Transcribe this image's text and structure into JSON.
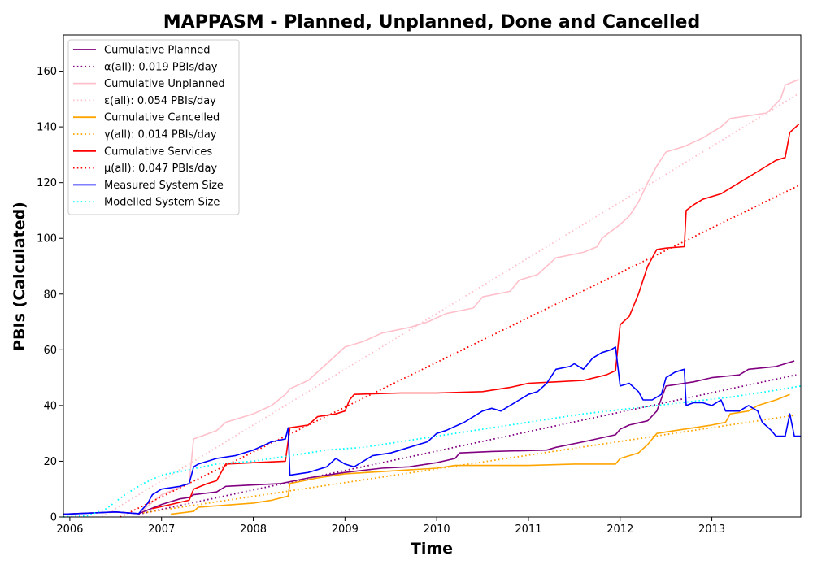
{
  "chart_data": {
    "type": "line",
    "title": "MAPPASM - Planned, Unplanned, Done  and Cancelled",
    "xlabel": "Time",
    "ylabel": "PBIs (Calculated)",
    "xlim": [
      2005.93,
      2013.97
    ],
    "ylim": [
      0,
      173
    ],
    "x_ticks": [
      2006,
      2007,
      2008,
      2009,
      2010,
      2011,
      2012,
      2013
    ],
    "y_ticks": [
      0,
      20,
      40,
      60,
      80,
      100,
      120,
      140,
      160
    ],
    "grid": false,
    "legend_position": "top-left",
    "series": [
      {
        "name": "Cumulative Planned",
        "color": "#800080",
        "style": "solid",
        "points": [
          [
            2005.93,
            1
          ],
          [
            2006.5,
            1.8
          ],
          [
            2006.75,
            1.2
          ],
          [
            2006.85,
            2.5
          ],
          [
            2007.0,
            4.5
          ],
          [
            2007.2,
            6.5
          ],
          [
            2007.3,
            7
          ],
          [
            2007.35,
            8
          ],
          [
            2007.6,
            9
          ],
          [
            2007.7,
            11
          ],
          [
            2008.0,
            11.5
          ],
          [
            2008.3,
            12
          ],
          [
            2008.6,
            14
          ],
          [
            2009.0,
            16
          ],
          [
            2009.4,
            17.5
          ],
          [
            2009.7,
            18
          ],
          [
            2010.0,
            19.5
          ],
          [
            2010.2,
            21
          ],
          [
            2010.25,
            23
          ],
          [
            2010.6,
            23.5
          ],
          [
            2011.2,
            24
          ],
          [
            2011.3,
            25
          ],
          [
            2011.6,
            27
          ],
          [
            2011.95,
            29.5
          ],
          [
            2012.0,
            31.5
          ],
          [
            2012.1,
            33
          ],
          [
            2012.3,
            34.5
          ],
          [
            2012.4,
            38
          ],
          [
            2012.5,
            47
          ],
          [
            2012.8,
            48.5
          ],
          [
            2013.0,
            50
          ],
          [
            2013.3,
            51
          ],
          [
            2013.4,
            53
          ],
          [
            2013.7,
            54
          ],
          [
            2013.9,
            56
          ]
        ]
      },
      {
        "name": "α(all): 0.019 PBIs/day",
        "color": "#800080",
        "style": "dotted",
        "points": [
          [
            2006.75,
            1
          ],
          [
            2013.92,
            51
          ]
        ]
      },
      {
        "name": "Cumulative Unplanned",
        "color": "#ffc0cb",
        "style": "solid",
        "points": [
          [
            2006.78,
            2
          ],
          [
            2007.0,
            8
          ],
          [
            2007.3,
            12
          ],
          [
            2007.35,
            28
          ],
          [
            2007.6,
            31
          ],
          [
            2007.7,
            34
          ],
          [
            2008.0,
            37
          ],
          [
            2008.2,
            40
          ],
          [
            2008.35,
            44
          ],
          [
            2008.4,
            46
          ],
          [
            2008.6,
            49
          ],
          [
            2008.8,
            55
          ],
          [
            2009.0,
            61
          ],
          [
            2009.2,
            63
          ],
          [
            2009.4,
            66
          ],
          [
            2009.7,
            68
          ],
          [
            2009.9,
            70
          ],
          [
            2010.1,
            73
          ],
          [
            2010.4,
            75
          ],
          [
            2010.5,
            79
          ],
          [
            2010.8,
            81
          ],
          [
            2010.9,
            85
          ],
          [
            2011.1,
            87
          ],
          [
            2011.2,
            90
          ],
          [
            2011.3,
            93
          ],
          [
            2011.6,
            95
          ],
          [
            2011.75,
            97
          ],
          [
            2011.8,
            100
          ],
          [
            2012.0,
            105
          ],
          [
            2012.1,
            108
          ],
          [
            2012.2,
            113
          ],
          [
            2012.3,
            120
          ],
          [
            2012.4,
            126
          ],
          [
            2012.5,
            131
          ],
          [
            2012.7,
            133
          ],
          [
            2012.9,
            136
          ],
          [
            2013.1,
            140
          ],
          [
            2013.2,
            143
          ],
          [
            2013.6,
            145
          ],
          [
            2013.75,
            150
          ],
          [
            2013.8,
            155
          ],
          [
            2013.95,
            157
          ]
        ]
      },
      {
        "name": "ε(all): 0.054 PBIs/day",
        "color": "#ffc0cb",
        "style": "dotted",
        "points": [
          [
            2006.35,
            0
          ],
          [
            2013.95,
            152
          ]
        ]
      },
      {
        "name": "Cumulative Cancelled",
        "color": "#ffa500",
        "style": "solid",
        "points": [
          [
            2007.1,
            1
          ],
          [
            2007.35,
            2
          ],
          [
            2007.4,
            3.5
          ],
          [
            2008.0,
            5
          ],
          [
            2008.2,
            6
          ],
          [
            2008.38,
            7.5
          ],
          [
            2008.4,
            12
          ],
          [
            2008.7,
            14
          ],
          [
            2009.0,
            15.5
          ],
          [
            2009.5,
            16.5
          ],
          [
            2010.0,
            17.5
          ],
          [
            2010.2,
            18.5
          ],
          [
            2011.0,
            18.5
          ],
          [
            2011.5,
            19
          ],
          [
            2011.95,
            19
          ],
          [
            2012.0,
            21
          ],
          [
            2012.1,
            22
          ],
          [
            2012.2,
            23
          ],
          [
            2012.3,
            26
          ],
          [
            2012.4,
            30
          ],
          [
            2012.6,
            31
          ],
          [
            2012.8,
            32
          ],
          [
            2013.0,
            33
          ],
          [
            2013.15,
            34
          ],
          [
            2013.2,
            37
          ],
          [
            2013.4,
            38
          ],
          [
            2013.5,
            40
          ],
          [
            2013.7,
            42
          ],
          [
            2013.85,
            44
          ]
        ]
      },
      {
        "name": "γ(all): 0.014 PBIs/day",
        "color": "#ffa500",
        "style": "dotted",
        "points": [
          [
            2006.8,
            1.5
          ],
          [
            2013.9,
            36.5
          ]
        ]
      },
      {
        "name": "Cumulative Services",
        "color": "#ff0000",
        "style": "solid",
        "points": [
          [
            2006.9,
            3
          ],
          [
            2007.1,
            4.5
          ],
          [
            2007.3,
            6
          ],
          [
            2007.35,
            10
          ],
          [
            2007.5,
            12
          ],
          [
            2007.6,
            13
          ],
          [
            2007.7,
            19
          ],
          [
            2008.0,
            19.5
          ],
          [
            2008.35,
            20
          ],
          [
            2008.4,
            32
          ],
          [
            2008.6,
            33
          ],
          [
            2008.7,
            36
          ],
          [
            2008.9,
            37
          ],
          [
            2009.0,
            38
          ],
          [
            2009.05,
            42
          ],
          [
            2009.1,
            44
          ],
          [
            2009.6,
            44.5
          ],
          [
            2010.0,
            44.5
          ],
          [
            2010.5,
            45
          ],
          [
            2010.8,
            46.5
          ],
          [
            2011.0,
            48
          ],
          [
            2011.3,
            48.5
          ],
          [
            2011.6,
            49
          ],
          [
            2011.85,
            51
          ],
          [
            2011.95,
            52.5
          ],
          [
            2012.0,
            69
          ],
          [
            2012.1,
            72
          ],
          [
            2012.2,
            80
          ],
          [
            2012.3,
            90
          ],
          [
            2012.4,
            96
          ],
          [
            2012.5,
            96.5
          ],
          [
            2012.7,
            97
          ],
          [
            2012.72,
            110
          ],
          [
            2012.8,
            112
          ],
          [
            2012.9,
            114
          ],
          [
            2013.1,
            116
          ],
          [
            2013.3,
            120
          ],
          [
            2013.5,
            124
          ],
          [
            2013.7,
            128
          ],
          [
            2013.8,
            129
          ],
          [
            2013.85,
            138
          ],
          [
            2013.95,
            141
          ]
        ]
      },
      {
        "name": "μ(all): 0.047 PBIs/day",
        "color": "#ff0000",
        "style": "dotted",
        "points": [
          [
            2006.55,
            0
          ],
          [
            2013.95,
            119
          ]
        ]
      },
      {
        "name": "Measured System Size",
        "color": "#0000ff",
        "style": "solid",
        "points": [
          [
            2005.93,
            1
          ],
          [
            2006.5,
            1.8
          ],
          [
            2006.75,
            1.2
          ],
          [
            2006.85,
            5
          ],
          [
            2006.9,
            8
          ],
          [
            2007.0,
            10
          ],
          [
            2007.2,
            11
          ],
          [
            2007.3,
            12
          ],
          [
            2007.35,
            18
          ],
          [
            2007.4,
            19
          ],
          [
            2007.6,
            21
          ],
          [
            2007.8,
            22
          ],
          [
            2008.0,
            24
          ],
          [
            2008.2,
            27
          ],
          [
            2008.35,
            28
          ],
          [
            2008.38,
            32
          ],
          [
            2008.4,
            15
          ],
          [
            2008.6,
            16
          ],
          [
            2008.8,
            18
          ],
          [
            2008.9,
            21
          ],
          [
            2009.0,
            19
          ],
          [
            2009.1,
            18
          ],
          [
            2009.3,
            22
          ],
          [
            2009.5,
            23
          ],
          [
            2009.7,
            25
          ],
          [
            2009.9,
            27
          ],
          [
            2010.0,
            30
          ],
          [
            2010.1,
            31
          ],
          [
            2010.3,
            34
          ],
          [
            2010.5,
            38
          ],
          [
            2010.6,
            39
          ],
          [
            2010.7,
            38
          ],
          [
            2010.9,
            42
          ],
          [
            2011.0,
            44
          ],
          [
            2011.1,
            45
          ],
          [
            2011.2,
            48
          ],
          [
            2011.3,
            53
          ],
          [
            2011.45,
            54
          ],
          [
            2011.5,
            55
          ],
          [
            2011.6,
            53
          ],
          [
            2011.7,
            57
          ],
          [
            2011.8,
            59
          ],
          [
            2011.9,
            60
          ],
          [
            2011.95,
            61
          ],
          [
            2012.0,
            47
          ],
          [
            2012.1,
            48
          ],
          [
            2012.2,
            45
          ],
          [
            2012.25,
            42
          ],
          [
            2012.35,
            42
          ],
          [
            2012.45,
            44
          ],
          [
            2012.5,
            50
          ],
          [
            2012.6,
            52
          ],
          [
            2012.7,
            53
          ],
          [
            2012.72,
            40
          ],
          [
            2012.8,
            41
          ],
          [
            2012.9,
            41
          ],
          [
            2013.0,
            40
          ],
          [
            2013.1,
            42
          ],
          [
            2013.15,
            38
          ],
          [
            2013.3,
            38
          ],
          [
            2013.4,
            40
          ],
          [
            2013.5,
            38
          ],
          [
            2013.55,
            34
          ],
          [
            2013.65,
            31
          ],
          [
            2013.7,
            29
          ],
          [
            2013.8,
            29
          ],
          [
            2013.85,
            37
          ],
          [
            2013.9,
            29
          ],
          [
            2013.97,
            29
          ]
        ]
      },
      {
        "name": "Modelled System Size",
        "color": "#00ffff",
        "style": "dotted",
        "points": [
          [
            2005.93,
            0
          ],
          [
            2006.2,
            0.5
          ],
          [
            2006.4,
            3
          ],
          [
            2006.6,
            8
          ],
          [
            2006.8,
            12
          ],
          [
            2007.0,
            15
          ],
          [
            2007.3,
            17
          ],
          [
            2007.6,
            19
          ],
          [
            2008.0,
            20
          ],
          [
            2008.4,
            22
          ],
          [
            2008.8,
            24
          ],
          [
            2009.2,
            25
          ],
          [
            2009.6,
            27
          ],
          [
            2010.0,
            29
          ],
          [
            2010.4,
            31
          ],
          [
            2010.8,
            33
          ],
          [
            2011.2,
            35
          ],
          [
            2011.6,
            37
          ],
          [
            2012.0,
            38.5
          ],
          [
            2012.4,
            40
          ],
          [
            2012.8,
            41.5
          ],
          [
            2013.2,
            43
          ],
          [
            2013.6,
            45
          ],
          [
            2013.97,
            47
          ]
        ]
      }
    ]
  }
}
